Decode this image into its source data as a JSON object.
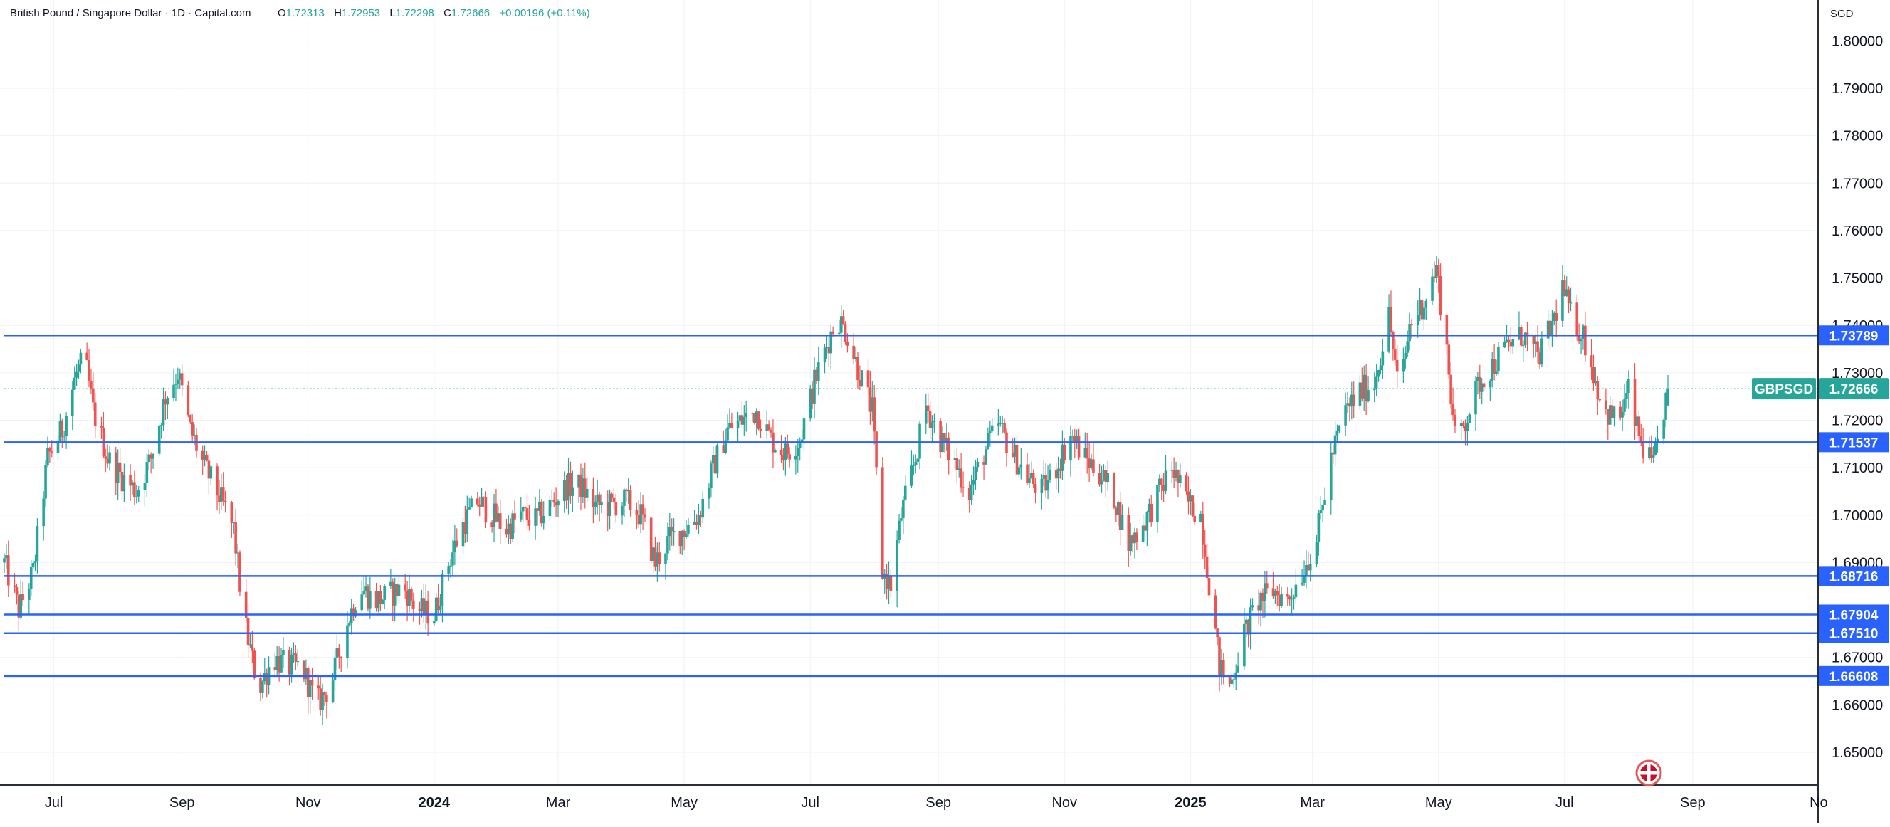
{
  "header": {
    "symbol_title": "British Pound / Singapore Dollar · 1D · Capital.com",
    "open_label": "O",
    "open_value": "1.72313",
    "high_label": "H",
    "high_value": "1.72953",
    "low_label": "L",
    "low_value": "1.72298",
    "close_label": "C",
    "close_value": "1.72666",
    "change": "+0.00196 (+0.11%)"
  },
  "colors": {
    "up": "#26a69a",
    "down": "#ef5350",
    "level_line": "#2962ff",
    "price_tag": "#26a69a",
    "grid": "#eef2f5",
    "axis_text": "#131722",
    "header_value": "#26a69a"
  },
  "icons": {
    "flag": "uk-flag-icon"
  },
  "chart_data": {
    "type": "candlestick",
    "currency": "SGD",
    "ylim": [
      1.6434,
      1.8086
    ],
    "xlim": [
      "2023-06-07",
      "2025-10-31"
    ],
    "y_ticks": [
      "1.80000",
      "1.79000",
      "1.78000",
      "1.77000",
      "1.76000",
      "1.75000",
      "1.74000",
      "1.73000",
      "1.72000",
      "1.71000",
      "1.70000",
      "1.69000",
      "1.67000",
      "1.66000",
      "1.65000"
    ],
    "y_tick_values": [
      1.8,
      1.79,
      1.78,
      1.77,
      1.76,
      1.75,
      1.74,
      1.73,
      1.72,
      1.71,
      1.7,
      1.69,
      1.67,
      1.66,
      1.65
    ],
    "x_ticks": [
      {
        "label": "Jul",
        "date": "2023-07-01",
        "bold": false
      },
      {
        "label": "Sep",
        "date": "2023-09-01",
        "bold": false
      },
      {
        "label": "Nov",
        "date": "2023-11-01",
        "bold": false
      },
      {
        "label": "2024",
        "date": "2024-01-01",
        "bold": true
      },
      {
        "label": "Mar",
        "date": "2024-03-01",
        "bold": false
      },
      {
        "label": "May",
        "date": "2024-05-01",
        "bold": false
      },
      {
        "label": "Jul",
        "date": "2024-07-01",
        "bold": false
      },
      {
        "label": "Sep",
        "date": "2024-09-01",
        "bold": false
      },
      {
        "label": "Nov",
        "date": "2024-11-01",
        "bold": false
      },
      {
        "label": "2025",
        "date": "2025-01-01",
        "bold": true
      },
      {
        "label": "Mar",
        "date": "2025-03-01",
        "bold": false
      },
      {
        "label": "May",
        "date": "2025-05-01",
        "bold": false
      },
      {
        "label": "Jul",
        "date": "2025-07-01",
        "bold": false
      },
      {
        "label": "Sep",
        "date": "2025-09-01",
        "bold": false
      },
      {
        "label": "No",
        "date": "2025-11-01",
        "bold": false
      }
    ],
    "horizontal_levels": [
      {
        "value": 1.73789,
        "label": "1.73789"
      },
      {
        "value": 1.71537,
        "label": "1.71537"
      },
      {
        "value": 1.68716,
        "label": "1.68716"
      },
      {
        "value": 1.67904,
        "label": "1.67904"
      },
      {
        "value": 1.6751,
        "label": "1.67510"
      },
      {
        "value": 1.66608,
        "label": "1.66608"
      }
    ],
    "last_price": {
      "symbol": "GBPSGD",
      "value": 1.72666,
      "label": "1.72666"
    },
    "price_path": [
      [
        "2023-06-07",
        1.69
      ],
      [
        "2023-06-14",
        1.68
      ],
      [
        "2023-06-21",
        1.688
      ],
      [
        "2023-06-28",
        1.712
      ],
      [
        "2023-07-05",
        1.718
      ],
      [
        "2023-07-12",
        1.73
      ],
      [
        "2023-07-16",
        1.733
      ],
      [
        "2023-07-20",
        1.722
      ],
      [
        "2023-07-27",
        1.712
      ],
      [
        "2023-08-03",
        1.708
      ],
      [
        "2023-08-10",
        1.705
      ],
      [
        "2023-08-17",
        1.712
      ],
      [
        "2023-08-24",
        1.725
      ],
      [
        "2023-08-30",
        1.73
      ],
      [
        "2023-09-05",
        1.718
      ],
      [
        "2023-09-12",
        1.71
      ],
      [
        "2023-09-19",
        1.704
      ],
      [
        "2023-09-26",
        1.697
      ],
      [
        "2023-10-01",
        1.678
      ],
      [
        "2023-10-08",
        1.663
      ],
      [
        "2023-10-15",
        1.67
      ],
      [
        "2023-10-22",
        1.668
      ],
      [
        "2023-10-29",
        1.668
      ],
      [
        "2023-11-05",
        1.66
      ],
      [
        "2023-11-12",
        1.664
      ],
      [
        "2023-11-19",
        1.676
      ],
      [
        "2023-11-26",
        1.685
      ],
      [
        "2023-12-03",
        1.682
      ],
      [
        "2023-12-10",
        1.683
      ],
      [
        "2023-12-17",
        1.685
      ],
      [
        "2023-12-24",
        1.68
      ],
      [
        "2024-01-01",
        1.679
      ],
      [
        "2024-01-08",
        1.69
      ],
      [
        "2024-01-15",
        1.698
      ],
      [
        "2024-01-22",
        1.703
      ],
      [
        "2024-01-29",
        1.7
      ],
      [
        "2024-02-05",
        1.697
      ],
      [
        "2024-02-12",
        1.7
      ],
      [
        "2024-02-19",
        1.699
      ],
      [
        "2024-02-26",
        1.702
      ],
      [
        "2024-03-05",
        1.706
      ],
      [
        "2024-03-12",
        1.706
      ],
      [
        "2024-03-19",
        1.702
      ],
      [
        "2024-03-26",
        1.702
      ],
      [
        "2024-04-03",
        1.703
      ],
      [
        "2024-04-10",
        1.7
      ],
      [
        "2024-04-17",
        1.69
      ],
      [
        "2024-04-24",
        1.695
      ],
      [
        "2024-05-01",
        1.697
      ],
      [
        "2024-05-08",
        1.7
      ],
      [
        "2024-05-15",
        1.71
      ],
      [
        "2024-05-22",
        1.718
      ],
      [
        "2024-05-29",
        1.72
      ],
      [
        "2024-06-05",
        1.722
      ],
      [
        "2024-06-12",
        1.716
      ],
      [
        "2024-06-19",
        1.713
      ],
      [
        "2024-06-26",
        1.716
      ],
      [
        "2024-07-03",
        1.728
      ],
      [
        "2024-07-10",
        1.737
      ],
      [
        "2024-07-14",
        1.742
      ],
      [
        "2024-07-19",
        1.738
      ],
      [
        "2024-07-24",
        1.731
      ],
      [
        "2024-07-31",
        1.722
      ],
      [
        "2024-08-05",
        1.688
      ],
      [
        "2024-08-09",
        1.685
      ],
      [
        "2024-08-14",
        1.7
      ],
      [
        "2024-08-21",
        1.712
      ],
      [
        "2024-08-26",
        1.723
      ],
      [
        "2024-09-02",
        1.716
      ],
      [
        "2024-09-09",
        1.711
      ],
      [
        "2024-09-16",
        1.705
      ],
      [
        "2024-09-23",
        1.713
      ],
      [
        "2024-09-30",
        1.719
      ],
      [
        "2024-10-07",
        1.713
      ],
      [
        "2024-10-14",
        1.708
      ],
      [
        "2024-10-21",
        1.705
      ],
      [
        "2024-10-28",
        1.71
      ],
      [
        "2024-11-04",
        1.717
      ],
      [
        "2024-11-11",
        1.712
      ],
      [
        "2024-11-18",
        1.709
      ],
      [
        "2024-11-25",
        1.704
      ],
      [
        "2024-12-02",
        1.694
      ],
      [
        "2024-12-09",
        1.698
      ],
      [
        "2024-12-16",
        1.704
      ],
      [
        "2024-12-23",
        1.71
      ],
      [
        "2024-12-30",
        1.703
      ],
      [
        "2025-01-06",
        1.7
      ],
      [
        "2025-01-10",
        1.686
      ],
      [
        "2025-01-15",
        1.668
      ],
      [
        "2025-01-20",
        1.664
      ],
      [
        "2025-01-27",
        1.675
      ],
      [
        "2025-02-03",
        1.682
      ],
      [
        "2025-02-10",
        1.684
      ],
      [
        "2025-02-17",
        1.682
      ],
      [
        "2025-02-24",
        1.688
      ],
      [
        "2025-03-03",
        1.695
      ],
      [
        "2025-03-10",
        1.712
      ],
      [
        "2025-03-17",
        1.722
      ],
      [
        "2025-03-24",
        1.726
      ],
      [
        "2025-03-31",
        1.728
      ],
      [
        "2025-04-07",
        1.742
      ],
      [
        "2025-04-12",
        1.725
      ],
      [
        "2025-04-17",
        1.74
      ],
      [
        "2025-04-24",
        1.745
      ],
      [
        "2025-04-30",
        1.752
      ],
      [
        "2025-05-05",
        1.735
      ],
      [
        "2025-05-09",
        1.716
      ],
      [
        "2025-05-14",
        1.72
      ],
      [
        "2025-05-21",
        1.728
      ],
      [
        "2025-05-28",
        1.732
      ],
      [
        "2025-06-04",
        1.736
      ],
      [
        "2025-06-11",
        1.738
      ],
      [
        "2025-06-18",
        1.733
      ],
      [
        "2025-06-25",
        1.74
      ],
      [
        "2025-06-30",
        1.748
      ],
      [
        "2025-07-04",
        1.742
      ],
      [
        "2025-07-10",
        1.738
      ],
      [
        "2025-07-15",
        1.73
      ],
      [
        "2025-07-20",
        1.722
      ],
      [
        "2025-07-27",
        1.72
      ],
      [
        "2025-08-01",
        1.726
      ],
      [
        "2025-08-05",
        1.718
      ],
      [
        "2025-08-09",
        1.713
      ],
      [
        "2025-08-13",
        1.71
      ],
      [
        "2025-08-17",
        1.72
      ],
      [
        "2025-08-20",
        1.7267
      ]
    ],
    "title": "",
    "xlabel": "",
    "ylabel": "",
    "grid": true,
    "legend": "none"
  }
}
